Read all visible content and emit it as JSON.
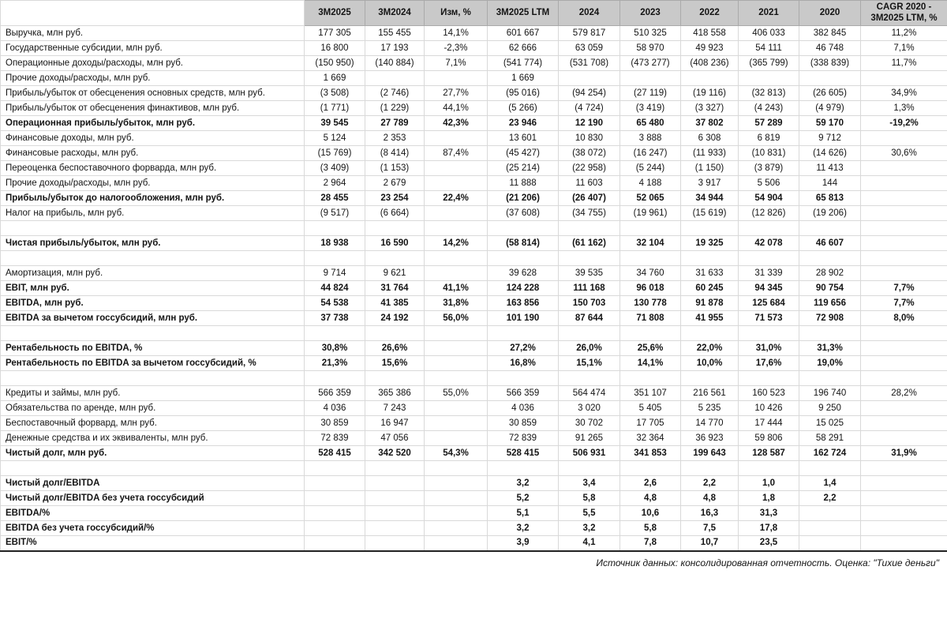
{
  "table": {
    "corner_label": "",
    "columns": [
      "3М2025",
      "3М2024",
      "Изм, %",
      "3М2025 LTM",
      "2024",
      "2023",
      "2022",
      "2021",
      "2020",
      "CAGR 2020 - 3М2025 LTM, %"
    ],
    "rows": [
      {
        "label": "Выручка, млн руб.",
        "bold": false,
        "values": [
          "177 305",
          "155 455",
          "14,1%",
          "601 667",
          "579 817",
          "510 325",
          "418 558",
          "406 033",
          "382 845",
          "11,2%"
        ]
      },
      {
        "label": "Государственные субсидии, млн руб.",
        "bold": false,
        "values": [
          "16 800",
          "17 193",
          "-2,3%",
          "62 666",
          "63 059",
          "58 970",
          "49 923",
          "54 111",
          "46 748",
          "7,1%"
        ]
      },
      {
        "label": "Операционные доходы/расходы, млн руб.",
        "bold": false,
        "values": [
          "(150 950)",
          "(140 884)",
          "7,1%",
          "(541 774)",
          "(531 708)",
          "(473 277)",
          "(408 236)",
          "(365 799)",
          "(338 839)",
          "11,7%"
        ]
      },
      {
        "label": "Прочие доходы/расходы, млн руб.",
        "bold": false,
        "values": [
          "1 669",
          "",
          "",
          "1 669",
          "",
          "",
          "",
          "",
          "",
          ""
        ]
      },
      {
        "label": "Прибыль/убыток от обесценения основных средств, млн руб.",
        "bold": false,
        "values": [
          "(3 508)",
          "(2 746)",
          "27,7%",
          "(95 016)",
          "(94 254)",
          "(27 119)",
          "(19 116)",
          "(32 813)",
          "(26 605)",
          "34,9%"
        ]
      },
      {
        "label": "Прибыль/убыток от обесценения финактивов, млн руб.",
        "bold": false,
        "values": [
          "(1 771)",
          "(1 229)",
          "44,1%",
          "(5 266)",
          "(4 724)",
          "(3 419)",
          "(3 327)",
          "(4 243)",
          "(4 979)",
          "1,3%"
        ]
      },
      {
        "label": "Операционная прибыль/убыток, млн руб.",
        "bold": true,
        "values": [
          "39 545",
          "27 789",
          "42,3%",
          "23 946",
          "12 190",
          "65 480",
          "37 802",
          "57 289",
          "59 170",
          "-19,2%"
        ]
      },
      {
        "label": "Финансовые доходы, млн руб.",
        "bold": false,
        "values": [
          "5 124",
          "2 353",
          "",
          "13 601",
          "10 830",
          "3 888",
          "6 308",
          "6 819",
          "9 712",
          ""
        ]
      },
      {
        "label": "Финансовые расходы, млн руб.",
        "bold": false,
        "values": [
          "(15 769)",
          "(8 414)",
          "87,4%",
          "(45 427)",
          "(38 072)",
          "(16 247)",
          "(11 933)",
          "(10 831)",
          "(14 626)",
          "30,6%"
        ]
      },
      {
        "label": "Переоценка беспоставочного форварда, млн руб.",
        "bold": false,
        "values": [
          "(3 409)",
          "(1 153)",
          "",
          "(25 214)",
          "(22 958)",
          "(5 244)",
          "(1 150)",
          "(3 879)",
          "11 413",
          ""
        ]
      },
      {
        "label": "Прочие доходы/расходы, млн руб.",
        "bold": false,
        "values": [
          "2 964",
          "2 679",
          "",
          "11 888",
          "11 603",
          "4 188",
          "3 917",
          "5 506",
          "144",
          ""
        ]
      },
      {
        "label": "Прибыль/убыток до налогообложения, млн руб.",
        "bold": true,
        "values": [
          "28 455",
          "23 254",
          "22,4%",
          "(21 206)",
          "(26 407)",
          "52 065",
          "34 944",
          "54 904",
          "65 813",
          ""
        ]
      },
      {
        "label": "Налог на прибыль, млн руб.",
        "bold": false,
        "values": [
          "(9 517)",
          "(6 664)",
          "",
          "(37 608)",
          "(34 755)",
          "(19 961)",
          "(15 619)",
          "(12 826)",
          "(19 206)",
          ""
        ]
      },
      {
        "label": "",
        "bold": false,
        "values": []
      },
      {
        "label": "Чистая прибыль/убыток, млн руб.",
        "bold": true,
        "values": [
          "18 938",
          "16 590",
          "14,2%",
          "(58 814)",
          "(61 162)",
          "32 104",
          "19 325",
          "42 078",
          "46 607",
          ""
        ]
      },
      {
        "label": "",
        "bold": false,
        "values": []
      },
      {
        "label": "Амортизация, млн руб.",
        "bold": false,
        "values": [
          "9 714",
          "9 621",
          "",
          "39 628",
          "39 535",
          "34 760",
          "31 633",
          "31 339",
          "28 902",
          ""
        ]
      },
      {
        "label": "EBIT, млн руб.",
        "bold": true,
        "values": [
          "44 824",
          "31 764",
          "41,1%",
          "124 228",
          "111 168",
          "96 018",
          "60 245",
          "94 345",
          "90 754",
          "7,7%"
        ]
      },
      {
        "label": "EBITDA, млн руб.",
        "bold": true,
        "values": [
          "54 538",
          "41 385",
          "31,8%",
          "163 856",
          "150 703",
          "130 778",
          "91 878",
          "125 684",
          "119 656",
          "7,7%"
        ]
      },
      {
        "label": "EBITDA за вычетом госсубсидий, млн руб.",
        "bold": true,
        "values": [
          "37 738",
          "24 192",
          "56,0%",
          "101 190",
          "87 644",
          "71 808",
          "41 955",
          "71 573",
          "72 908",
          "8,0%"
        ]
      },
      {
        "label": "",
        "bold": false,
        "values": []
      },
      {
        "label": "Рентабельность по EBITDA, %",
        "bold": true,
        "values": [
          "30,8%",
          "26,6%",
          "",
          "27,2%",
          "26,0%",
          "25,6%",
          "22,0%",
          "31,0%",
          "31,3%",
          ""
        ]
      },
      {
        "label": "Рентабельность по EBITDA за вычетом госсубсидий, %",
        "bold": true,
        "values": [
          "21,3%",
          "15,6%",
          "",
          "16,8%",
          "15,1%",
          "14,1%",
          "10,0%",
          "17,6%",
          "19,0%",
          ""
        ]
      },
      {
        "label": "",
        "bold": false,
        "values": []
      },
      {
        "label": "Кредиты и займы, млн руб.",
        "bold": false,
        "values": [
          "566 359",
          "365 386",
          "55,0%",
          "566 359",
          "564 474",
          "351 107",
          "216 561",
          "160 523",
          "196 740",
          "28,2%"
        ]
      },
      {
        "label": "Обязательства по аренде, млн руб.",
        "bold": false,
        "values": [
          "4 036",
          "7 243",
          "",
          "4 036",
          "3 020",
          "5 405",
          "5 235",
          "10 426",
          "9 250",
          ""
        ]
      },
      {
        "label": "Беспоставочный форвард, млн руб.",
        "bold": false,
        "values": [
          "30 859",
          "16 947",
          "",
          "30 859",
          "30 702",
          "17 705",
          "14 770",
          "17 444",
          "15 025",
          ""
        ]
      },
      {
        "label": "Денежные средства и их эквиваленты, млн руб.",
        "bold": false,
        "values": [
          "72 839",
          "47 056",
          "",
          "72 839",
          "91 265",
          "32 364",
          "36 923",
          "59 806",
          "58 291",
          ""
        ]
      },
      {
        "label": "Чистый долг, млн руб.",
        "bold": true,
        "values": [
          "528 415",
          "342 520",
          "54,3%",
          "528 415",
          "506 931",
          "341 853",
          "199 643",
          "128 587",
          "162 724",
          "31,9%"
        ]
      },
      {
        "label": "",
        "bold": false,
        "values": []
      },
      {
        "label": "Чистый долг/EBITDA",
        "bold": true,
        "values": [
          "",
          "",
          "",
          "3,2",
          "3,4",
          "2,6",
          "2,2",
          "1,0",
          "1,4",
          ""
        ]
      },
      {
        "label": "Чистый долг/EBITDA без учета госсубсидий",
        "bold": true,
        "values": [
          "",
          "",
          "",
          "5,2",
          "5,8",
          "4,8",
          "4,8",
          "1,8",
          "2,2",
          ""
        ]
      },
      {
        "label": "EBITDA/%",
        "bold": true,
        "values": [
          "",
          "",
          "",
          "5,1",
          "5,5",
          "10,6",
          "16,3",
          "31,3",
          "",
          ""
        ]
      },
      {
        "label": "EBITDA без учета госсубсидий/%",
        "bold": true,
        "values": [
          "",
          "",
          "",
          "3,2",
          "3,2",
          "5,8",
          "7,5",
          "17,8",
          "",
          ""
        ]
      },
      {
        "label": "EBIT/%",
        "bold": true,
        "values": [
          "",
          "",
          "",
          "3,9",
          "4,1",
          "7,8",
          "10,7",
          "23,5",
          "",
          ""
        ]
      }
    ]
  },
  "footer": {
    "note": "Источник данных: консолидированная отчетность. Оценка: \"Тихие деньги\""
  },
  "colors": {
    "header_bg": "#c9c9c9",
    "grid_line": "#d9d9d9",
    "dark_border": "#000000",
    "text": "#141414"
  }
}
